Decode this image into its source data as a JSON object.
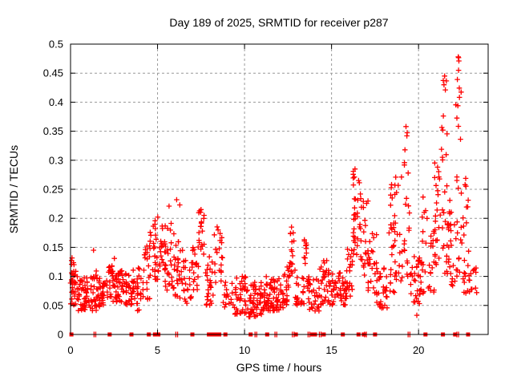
{
  "figure": {
    "background": "#ffffff",
    "text_color": "#000000"
  },
  "chart_data": {
    "type": "scatter",
    "title": "Day 189 of 2025, SRMTID for receiver p287",
    "xlabel": "GPS time / hours",
    "ylabel": "SRMTID / TECUs",
    "xlim": [
      0,
      24
    ],
    "ylim": [
      0,
      0.5
    ],
    "xticks": {
      "values": [
        0,
        5,
        10,
        15,
        20
      ],
      "labels": [
        "0",
        "5",
        "10",
        "15",
        "20"
      ]
    },
    "yticks": {
      "values": [
        0,
        0.05,
        0.1,
        0.15,
        0.2,
        0.25,
        0.3,
        0.35,
        0.4,
        0.45,
        0.5
      ],
      "labels": [
        "0",
        "0.05",
        "0.1",
        "0.15",
        "0.2",
        "0.25",
        "0.3",
        "0.35",
        "0.4",
        "0.45",
        "0.5"
      ]
    },
    "grid": true,
    "grid_style": "dashed",
    "grid_color": "#999999",
    "axis_color": "#000000",
    "legend": null,
    "marker": "plus",
    "marker_size_px": 7,
    "marker_color": "#ff0000",
    "series_name": "SRMTID",
    "points_note": "Dense scatter (~1250 red '+' points) of SRMTID vs GPS time. Values read from the image are encoded as time-bin clusters: [t_start_hours, t_end_hours, n_points, y_min_TECU, y_max_TECU, bottom_skew]. Quiet band ~0.03-0.10 TECU through most of the day; activity bumps near 5-8 h (to ~0.22), 16-17 h (to ~0.29), 19-19.5 h (to ~0.36), and 21-22.5 h (max ~0.48 at ~22.3 h).",
    "clusters": [
      [
        0.0,
        0.35,
        22,
        0.05,
        0.145,
        1.2
      ],
      [
        0.05,
        0.25,
        10,
        0.06,
        0.13,
        1.0
      ],
      [
        0.35,
        0.7,
        20,
        0.038,
        0.1,
        1.3
      ],
      [
        0.7,
        1.1,
        26,
        0.042,
        0.098,
        1.2
      ],
      [
        1.1,
        1.6,
        30,
        0.04,
        0.11,
        1.3
      ],
      [
        1.6,
        2.1,
        30,
        0.048,
        0.1,
        1.2
      ],
      [
        2.1,
        2.6,
        30,
        0.05,
        0.12,
        1.2
      ],
      [
        2.6,
        3.1,
        30,
        0.055,
        0.115,
        1.1
      ],
      [
        3.1,
        3.6,
        28,
        0.05,
        0.105,
        1.2
      ],
      [
        3.6,
        4.1,
        28,
        0.04,
        0.12,
        1.3
      ],
      [
        4.1,
        4.55,
        22,
        0.06,
        0.155,
        1.2
      ],
      [
        4.55,
        5.05,
        30,
        0.095,
        0.21,
        1.2
      ],
      [
        5.05,
        5.45,
        24,
        0.09,
        0.2,
        1.1
      ],
      [
        5.45,
        6.0,
        28,
        0.075,
        0.195,
        1.3
      ],
      [
        6.0,
        6.5,
        24,
        0.06,
        0.16,
        1.3
      ],
      [
        6.5,
        7.0,
        24,
        0.05,
        0.13,
        1.2
      ],
      [
        7.0,
        7.35,
        18,
        0.075,
        0.155,
        1.1
      ],
      [
        7.35,
        7.7,
        18,
        0.11,
        0.215,
        1.0
      ],
      [
        7.7,
        8.2,
        26,
        0.05,
        0.135,
        1.3
      ],
      [
        8.2,
        8.75,
        20,
        0.085,
        0.19,
        1.1
      ],
      [
        8.75,
        9.3,
        16,
        0.045,
        0.09,
        1.2
      ],
      [
        9.3,
        10.2,
        42,
        0.035,
        0.1,
        1.4
      ],
      [
        10.2,
        11.0,
        50,
        0.03,
        0.092,
        1.4
      ],
      [
        11.0,
        11.6,
        36,
        0.04,
        0.1,
        1.3
      ],
      [
        11.6,
        12.25,
        40,
        0.04,
        0.096,
        1.3
      ],
      [
        12.25,
        12.6,
        22,
        0.05,
        0.12,
        1.2
      ],
      [
        12.6,
        12.9,
        14,
        0.1,
        0.18,
        1.0
      ],
      [
        12.9,
        13.42,
        24,
        0.05,
        0.1,
        1.2
      ],
      [
        13.42,
        13.62,
        10,
        0.115,
        0.17,
        1.0
      ],
      [
        13.62,
        14.3,
        34,
        0.04,
        0.1,
        1.3
      ],
      [
        14.3,
        14.75,
        24,
        0.05,
        0.128,
        1.2
      ],
      [
        14.75,
        15.25,
        24,
        0.05,
        0.12,
        1.2
      ],
      [
        15.25,
        15.85,
        30,
        0.05,
        0.11,
        1.2
      ],
      [
        15.85,
        16.2,
        22,
        0.065,
        0.15,
        1.1
      ],
      [
        16.2,
        16.62,
        30,
        0.13,
        0.285,
        1.0
      ],
      [
        16.62,
        17.1,
        26,
        0.1,
        0.245,
        1.1
      ],
      [
        17.1,
        17.6,
        24,
        0.07,
        0.175,
        1.2
      ],
      [
        17.6,
        18.2,
        30,
        0.045,
        0.115,
        1.3
      ],
      [
        18.2,
        18.62,
        20,
        0.07,
        0.26,
        1.4
      ],
      [
        18.62,
        19.12,
        24,
        0.09,
        0.275,
        1.3
      ],
      [
        19.12,
        19.5,
        18,
        0.1,
        0.36,
        1.5
      ],
      [
        19.5,
        20.2,
        34,
        0.05,
        0.135,
        1.2
      ],
      [
        20.2,
        20.9,
        30,
        0.07,
        0.25,
        1.4
      ],
      [
        20.9,
        21.3,
        24,
        0.12,
        0.3,
        1.2
      ],
      [
        21.3,
        21.7,
        26,
        0.1,
        0.445,
        1.5
      ],
      [
        21.7,
        22.1,
        24,
        0.08,
        0.25,
        1.3
      ],
      [
        22.1,
        22.45,
        24,
        0.1,
        0.48,
        1.4
      ],
      [
        22.45,
        22.9,
        24,
        0.07,
        0.3,
        1.5
      ],
      [
        22.9,
        23.35,
        12,
        0.07,
        0.125,
        1.2
      ]
    ],
    "outlier_points": [
      [
        1.32,
        0.145
      ],
      [
        2.52,
        0.131
      ],
      [
        5.66,
        0.221
      ],
      [
        6.1,
        0.232
      ],
      [
        6.28,
        0.223
      ],
      [
        7.5,
        0.215
      ],
      [
        12.7,
        0.185
      ],
      [
        16.35,
        0.285
      ],
      [
        18.4,
        0.24
      ],
      [
        18.45,
        0.258
      ],
      [
        19.22,
        0.318
      ],
      [
        19.28,
        0.358
      ],
      [
        19.33,
        0.342
      ],
      [
        19.9,
        0.033
      ],
      [
        21.46,
        0.43
      ],
      [
        21.5,
        0.445
      ],
      [
        22.28,
        0.478
      ],
      [
        22.32,
        0.471
      ],
      [
        22.3,
        0.455
      ]
    ],
    "zero_square_hours": [
      0.05,
      2.25,
      3.5,
      4.5,
      4.85,
      5.05,
      7.0,
      7.95,
      8.15,
      8.35,
      8.55,
      8.9,
      10.35,
      11.3,
      12.95,
      13.9,
      14.05,
      14.55,
      15.65,
      16.55,
      16.85,
      17.5,
      20.4,
      21.4,
      22.1,
      22.85
    ],
    "zero_tick_hours": [
      1.35,
      1.45,
      6.05,
      6.15,
      10.6,
      10.7,
      11.75,
      11.85,
      12.75,
      12.85,
      13.65,
      13.75,
      14.3,
      14.4,
      16.9,
      17.0,
      19.4,
      19.5,
      22.2,
      22.3
    ]
  }
}
